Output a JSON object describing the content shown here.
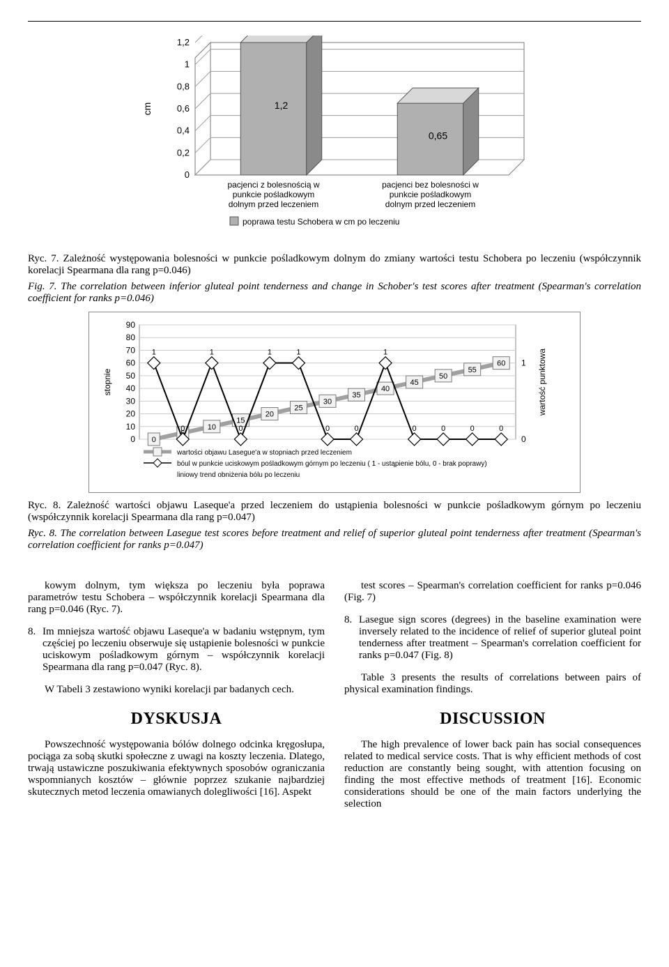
{
  "chart1": {
    "type": "bar-3d",
    "ylabel": "cm",
    "ylabel_fontsize": 14,
    "ylim": [
      0,
      1.2
    ],
    "ytick_step": 0.2,
    "yticks": [
      "0",
      "0,2",
      "0,4",
      "0,6",
      "0,8",
      "1",
      "1,2"
    ],
    "tick_fontsize": 13,
    "bar_color_front": "#b0b0b0",
    "bar_color_side": "#8a8a8a",
    "bar_color_top": "#d8d8d8",
    "wall_color": "#ffffff",
    "floor_color": "#ffffff",
    "grid_color": "#9a9a9a",
    "outline_color": "#7a7a7a",
    "bars": [
      {
        "label_lines": [
          "pacjenci z bolesnością w",
          "punkcie pośladkowym",
          "dolnym przed leczeniem"
        ],
        "value": 1.2,
        "value_text": "1,2"
      },
      {
        "label_lines": [
          "pacjenci bez bolesności w",
          "punkcie pośladkowym",
          "dolnym przed leczeniem"
        ],
        "value": 0.65,
        "value_text": "0,65"
      }
    ],
    "legend_label": "poprawa testu Schobera w cm po leczeniu",
    "legend_marker_fill": "#b0b0b0",
    "cat_label_fontsize": 12
  },
  "caption7_pl": "Ryc. 7. Zależność występowania bolesności w punkcie pośladkowym dolnym do zmiany wartości testu Schobera po leczeniu (współczynnik korelacji Spearmana dla rang p=0.046)",
  "caption7_en": "Fig. 7. The correlation between inferior gluteal point tenderness and change in Schober's test scores after treatment (Spearman's correlation coefficient for ranks p=0.046)",
  "chart2": {
    "type": "line-dual",
    "ylabel_left": "stopnie",
    "ylabel_right": "wartość punktowa",
    "label_fontsize": 12,
    "ylim": [
      0,
      90
    ],
    "yticks": [
      0,
      10,
      20,
      30,
      40,
      50,
      60,
      70,
      80,
      90
    ],
    "tick_fontsize": 12,
    "background_color": "#ffffff",
    "grid_color": "#cccccc",
    "axis_color": "#888",
    "right_scale_ylim": [
      0,
      1
    ],
    "right_scale_yticks": [
      "0",
      "1"
    ],
    "x_count": 13,
    "series_boxes": {
      "values": [
        0,
        5,
        10,
        15,
        20,
        25,
        30,
        35,
        40,
        45,
        50,
        55,
        60
      ],
      "line_color": "#a0a0a0",
      "line_width": 6,
      "box_fill": "#f2f2f2",
      "box_stroke": "#7a7a7a",
      "label_fontsize": 11
    },
    "series_diamonds": {
      "values": [
        1,
        0,
        1,
        0,
        1,
        1,
        0,
        0,
        1,
        0,
        0,
        0,
        0
      ],
      "yscale_max": 1,
      "line_color": "#000000",
      "line_width": 2,
      "marker_fill": "#ffffff",
      "marker_stroke": "#000000",
      "marker_size": 9
    },
    "series_trend": {
      "start_value": 0,
      "end_value": 60,
      "line_color": "#a0a0a0",
      "line_width": 2
    },
    "legend": [
      {
        "marker": "box-line",
        "label": "wartości objawu Lasegue'a  w stopniach przed leczeniem"
      },
      {
        "marker": "diamond-line",
        "label": "bóul w punkcie uciskowym pośladkowym górnym po leczeniu  ( 1 - ustąpienie bólu, 0 - brak poprawy)"
      },
      {
        "marker": "none",
        "label": "liniowy trend obniżenia bólu po leczeniu"
      }
    ],
    "legend_fontsize": 10
  },
  "caption8_pl": "Ryc. 8. Zależność wartości objawu Laseque'a przed leczeniem do ustąpienia bolesności w punkcie pośladkowym górnym po leczeniu (współczynnik korelacji Spearmana dla rang p=0.047)",
  "caption8_en": "Ryc. 8. The correlation between Lasegue test scores before treatment and relief of superior gluteal point tenderness after treatment (Spearman's correlation coefficient for ranks p=0.047)",
  "body_left": {
    "p1": "kowym dolnym, tym większa po leczeniu była poprawa parametrów testu Schobera – współczynnik korelacji Spearmana dla rang p=0.046 (Ryc. 7).",
    "li8": "Im mniejsza wartość objawu Laseque'a w badaniu wstępnym, tym częściej po leczeniu obserwuje się ustąpienie bolesności w punkcie uciskowym pośladkowym górnym – współczynnik korelacji Spearmana dla rang p=0.047 (Ryc. 8).",
    "p2": "W Tabeli 3 zestawiono wyniki korelacji par badanych cech.",
    "heading": "DYSKUSJA",
    "p3": "Powszechność występowania bólów dolnego odcinka kręgosłupa, pociąga za sobą skutki społeczne z uwagi na koszty leczenia. Dlatego, trwają ustawiczne poszukiwania efektywnych sposobów ograniczania wspomnianych kosztów – głównie poprzez szukanie najbardziej skutecznych metod leczenia omawianych dolegliwości [16]. Aspekt"
  },
  "body_right": {
    "p1": "test scores – Spearman's correlation coefficient for ranks p=0.046 (Fig. 7)",
    "li8": "Lasegue sign scores (degrees) in the baseline examination were inversely related to the incidence of relief of superior gluteal point tenderness after treatment – Spearman's correlation coefficient for ranks p=0.047 (Fig. 8)",
    "p2": "Table 3 presents the results of correlations between pairs of physical examination findings.",
    "heading": "DISCUSSION",
    "p3": "The high prevalence of lower back pain has social consequences related to medical service costs. That is why efficient methods of cost reduction are constantly being sought, with attention focusing on finding the most effective methods of treatment [16]. Economic considerations should be one of the main factors underlying the selection"
  }
}
